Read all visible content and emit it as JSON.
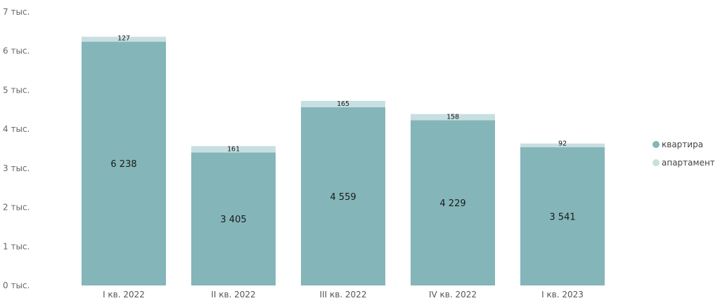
{
  "chart_data": {
    "type": "bar",
    "stacked": true,
    "categories": [
      "I кв. 2022",
      "II кв. 2022",
      "III кв. 2022",
      "IV кв. 2022",
      "I кв. 2023"
    ],
    "series": [
      {
        "name": "квартира",
        "color": "#84b5b9",
        "values": [
          6238,
          3405,
          4559,
          4229,
          3541
        ],
        "labels": [
          "6 238",
          "3 405",
          "4 559",
          "4 229",
          "3 541"
        ]
      },
      {
        "name": "апартамент",
        "color": "#c8dfe1",
        "values": [
          127,
          161,
          165,
          158,
          92
        ],
        "labels": [
          "127",
          "161",
          "165",
          "158",
          "92"
        ]
      }
    ],
    "ylim": [
      0,
      7000
    ],
    "yticks": [
      0,
      1000,
      2000,
      3000,
      4000,
      5000,
      6000,
      7000
    ],
    "ytick_labels": [
      "0 тыс.",
      "1 тыс.",
      "2 тыс.",
      "3 тыс.",
      "4 тыс.",
      "5 тыс.",
      "6 тыс.",
      "7 тыс."
    ],
    "legend_position": "right",
    "grid": false
  }
}
